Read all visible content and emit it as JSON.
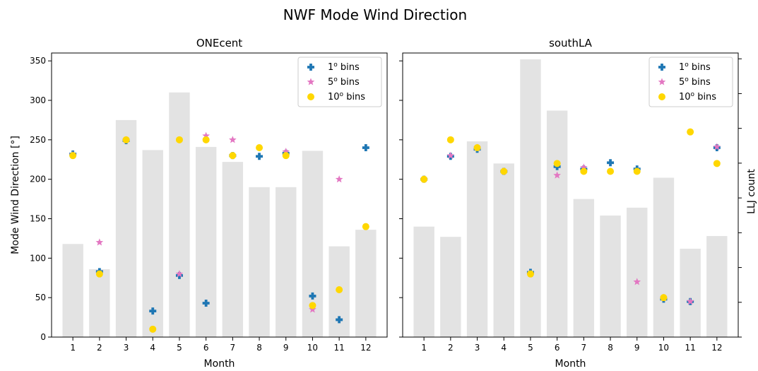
{
  "figure": {
    "title": "NWF Mode Wind Direction",
    "ylabel_left": "Mode Wind Direction [°]",
    "ylabel_right": "LLJ count"
  },
  "colors": {
    "bars": "#e3e3e3",
    "bins1": "#1f77b4",
    "bins5": "#e377c2",
    "bins10": "#ffd700"
  },
  "legend": {
    "entries": [
      {
        "base": "1",
        "sup": "o",
        "suffix": "bins"
      },
      {
        "base": "5",
        "sup": "o",
        "suffix": "bins"
      },
      {
        "base": "10",
        "sup": "o",
        "suffix": "bins"
      }
    ]
  },
  "chart_data": [
    {
      "type": "bar+scatter",
      "title": "ONEcent",
      "xlabel": "Month",
      "ylabel": "Mode Wind Direction [°]",
      "ylim": [
        0,
        360
      ],
      "yticks": [
        0,
        50,
        100,
        150,
        200,
        250,
        300,
        350
      ],
      "categories": [
        "1",
        "2",
        "3",
        "4",
        "5",
        "6",
        "7",
        "8",
        "9",
        "10",
        "11",
        "12"
      ],
      "legend_position": "top-right",
      "bars": {
        "name": "LLJ count",
        "values": [
          118,
          86,
          275,
          237,
          310,
          241,
          222,
          190,
          190,
          236,
          115,
          136
        ]
      },
      "series": [
        {
          "name": "1° bins",
          "marker": "plus",
          "values": [
            232,
            83,
            249,
            33,
            78,
            43,
            230,
            229,
            233,
            52,
            22,
            240
          ]
        },
        {
          "name": "5° bins",
          "marker": "star",
          "values": [
            231,
            120,
            250,
            null,
            80,
            255,
            250,
            null,
            235,
            35,
            200,
            null
          ]
        },
        {
          "name": "10° bins",
          "marker": "circle",
          "values": [
            230,
            80,
            250,
            10,
            250,
            250,
            230,
            240,
            230,
            40,
            60,
            140
          ]
        }
      ]
    },
    {
      "type": "bar+scatter",
      "title": "southLA",
      "xlabel": "Month",
      "ylabel": "LLJ count",
      "ylim": [
        0,
        360
      ],
      "categories": [
        "1",
        "2",
        "3",
        "4",
        "5",
        "6",
        "7",
        "8",
        "9",
        "10",
        "11",
        "12"
      ],
      "legend_position": "top-right",
      "bars": {
        "name": "LLJ count",
        "values": [
          140,
          127,
          248,
          220,
          352,
          287,
          175,
          154,
          164,
          202,
          112,
          128
        ]
      },
      "series": [
        {
          "name": "1° bins",
          "marker": "plus",
          "values": [
            200,
            229,
            238,
            210,
            82,
            216,
            213,
            221,
            213,
            48,
            45,
            240
          ]
        },
        {
          "name": "5° bins",
          "marker": "star",
          "values": [
            200,
            230,
            240,
            210,
            80,
            205,
            215,
            null,
            70,
            50,
            45,
            241
          ]
        },
        {
          "name": "10° bins",
          "marker": "circle",
          "values": [
            200,
            250,
            240,
            210,
            80,
            220,
            210,
            210,
            210,
            50,
            260,
            220
          ]
        }
      ]
    }
  ]
}
